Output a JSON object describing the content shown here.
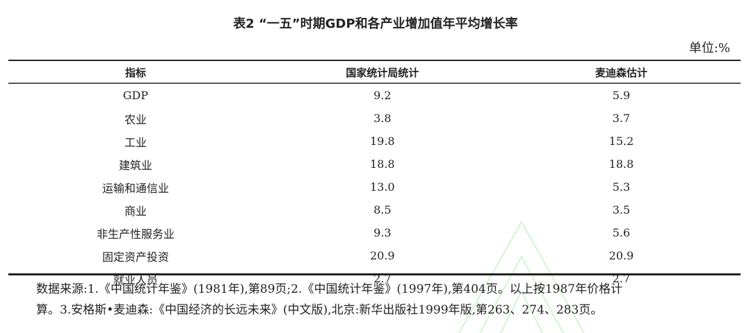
{
  "title": "表2 “一五”时期GDP和各产业增加值年平均增长率",
  "unit": "单位:%",
  "table": {
    "headers": [
      "指标",
      "国家统计局统计",
      "麦迪森估计"
    ],
    "rows": [
      [
        "GDP",
        "9.2",
        "5.9"
      ],
      [
        "农业",
        "3.8",
        "3.7"
      ],
      [
        "工业",
        "19.8",
        "15.2"
      ],
      [
        "建筑业",
        "18.8",
        "18.8"
      ],
      [
        "运输和通信业",
        "13.0",
        "5.3"
      ],
      [
        "商业",
        "8.5",
        "3.5"
      ],
      [
        "非生产性服务业",
        "9.3",
        "5.6"
      ],
      [
        "固定资产投资",
        "20.9",
        "20.9"
      ],
      [
        "就业人员",
        "2.7",
        "2.7"
      ]
    ]
  },
  "notes": [
    "数据来源:1.《中国统计年鉴》(1981年),第89页;2.《中国统计年鉴》(1997年),第404页。以上按1987年价格计",
    "算。3.安格斯•麦迪森:《中国经济的长远未来》(中文版),北京:新华出版社1999年版,第263、274、283页。"
  ]
}
